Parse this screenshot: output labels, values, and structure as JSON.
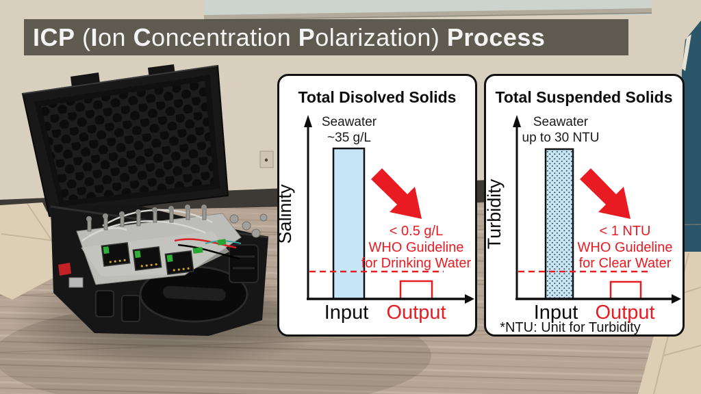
{
  "banner": {
    "title_text": "ICP (Ion Concentration Polarization) Process",
    "title_segments": [
      {
        "text": "ICP",
        "bold": true
      },
      {
        "text": " (",
        "bold": false
      },
      {
        "text": "I",
        "bold": true
      },
      {
        "text": "on ",
        "bold": false
      },
      {
        "text": "C",
        "bold": true
      },
      {
        "text": "oncentration ",
        "bold": false
      },
      {
        "text": "P",
        "bold": true
      },
      {
        "text": "olarization) ",
        "bold": false
      },
      {
        "text": "Process",
        "bold": true
      }
    ],
    "bg_color": "rgba(74,70,61,0.85)",
    "text_color": "#f4f4f2"
  },
  "panels": {
    "tds": {
      "title": "Total Disolved Solids",
      "y_axis_label": "Salinity",
      "seawater_lines": [
        "Seawater",
        "~35 g/L"
      ],
      "guideline_lines": [
        "< 0.5 g/L",
        "WHO Guideline",
        "for Drinking Water"
      ],
      "input_label": "Input",
      "output_label": "Output"
    },
    "tss": {
      "title": "Total Suspended Solids",
      "y_axis_label": "Turbidity",
      "seawater_lines": [
        "Seawater",
        "up to 30 NTU"
      ],
      "guideline_lines": [
        "< 1 NTU",
        "WHO Guideline",
        "for Clear Water"
      ],
      "input_label": "Input",
      "output_label": "Output",
      "footnote": "*NTU: Unit for Turbidity"
    }
  },
  "chart_data": [
    {
      "type": "bar",
      "title": "Total Disolved Solids",
      "ylabel": "Salinity",
      "categories": [
        "Input",
        "Output"
      ],
      "values": [
        35,
        0.5
      ],
      "units": "g/L",
      "bar_styles": [
        "solid-lightblue",
        "red-outline"
      ],
      "annotations": [
        "Seawater ~35 g/L",
        "< 0.5 g/L WHO Guideline for Drinking Water"
      ],
      "guideline": {
        "value": 0.5,
        "style": "dashed-red"
      },
      "legend_position": "none",
      "grid": false
    },
    {
      "type": "bar",
      "title": "Total Suspended Solids",
      "ylabel": "Turbidity",
      "categories": [
        "Input",
        "Output"
      ],
      "values": [
        30,
        1
      ],
      "units": "NTU",
      "bar_styles": [
        "dotted-lightblue",
        "red-outline"
      ],
      "annotations": [
        "Seawater up to 30 NTU",
        "< 1 NTU WHO Guideline for Clear Water",
        "*NTU: Unit for Turbidity"
      ],
      "guideline": {
        "value": 1,
        "style": "dashed-red"
      },
      "legend_position": "none",
      "grid": false
    }
  ],
  "colors": {
    "accent_red": "#e81b22",
    "bar_blue": "#c6e6f8",
    "panel_bg": "#ffffff",
    "panel_border": "#111111",
    "wall_beige": "#d9cfbe",
    "whiteboard": "#cdd4cd",
    "teal_corner": "#2b5568",
    "baseboard": "#3d3a35",
    "wood_floor": "#b7a695",
    "tile_floor": "#dccfb6",
    "case_black": "#161616",
    "foam_dark": "#1d1d1d",
    "tray_gray": "#bcbcb8",
    "connector_green": "#2fae3a",
    "wire_red": "#d42428",
    "latch_red": "#c22126"
  }
}
